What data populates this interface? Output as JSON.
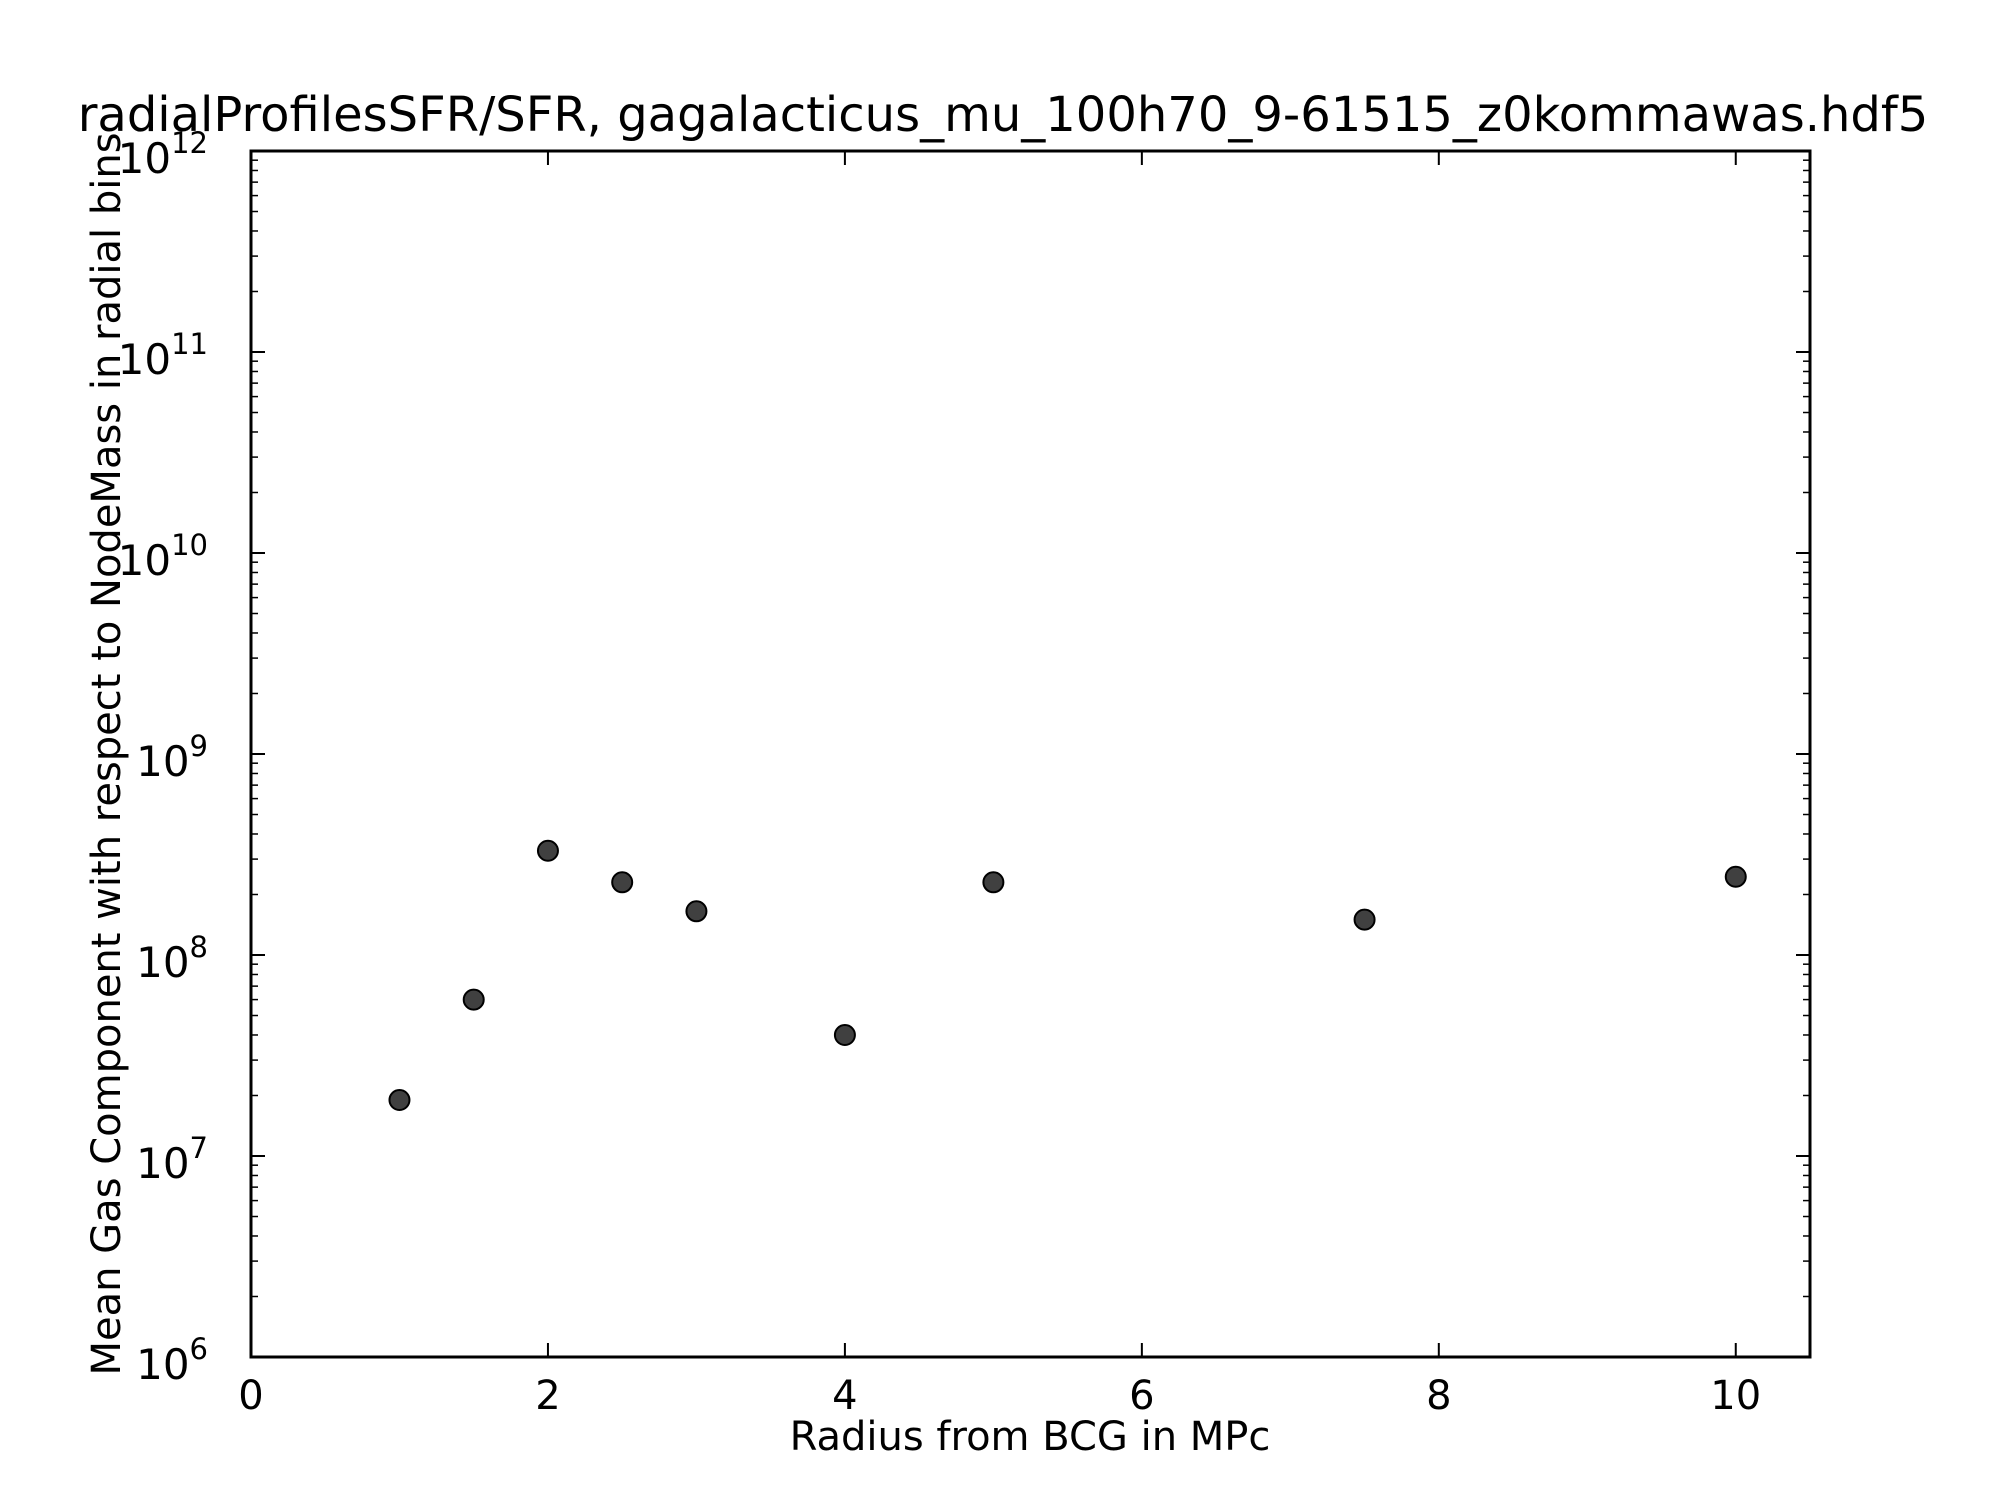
{
  "chart_data": {
    "type": "scatter",
    "title": "radialProfilesSFR/SFR, gagalacticus_mu_100h70_9-61515_z0kommawas.hdf5",
    "xlabel": "Radius from BCG in MPc",
    "ylabel": "Mean Gas Component with respect to NodeMass in radial bins",
    "xlim": [
      0,
      10.5
    ],
    "ylim": [
      1000000,
      1000000000000
    ],
    "yscale": "log",
    "x_ticks": [
      0,
      2,
      4,
      6,
      8,
      10
    ],
    "x_tick_labels": [
      "0",
      "2",
      "4",
      "6",
      "8",
      "10"
    ],
    "y_ticks": [
      6,
      7,
      8,
      9,
      10,
      11,
      12
    ],
    "y_tick_base": "10",
    "grid": false,
    "legend": "none",
    "marker_color": "#404040",
    "marker_edge_color": "#000000",
    "series": [
      {
        "x": [
          1.0,
          1.5,
          2.0,
          2.5,
          3.0,
          4.0,
          5.0,
          7.5,
          10.0
        ],
        "y": [
          19000000,
          60000000,
          330000000,
          230000000,
          165000000,
          40000000,
          230000000,
          150000000,
          245000000
        ]
      }
    ]
  }
}
